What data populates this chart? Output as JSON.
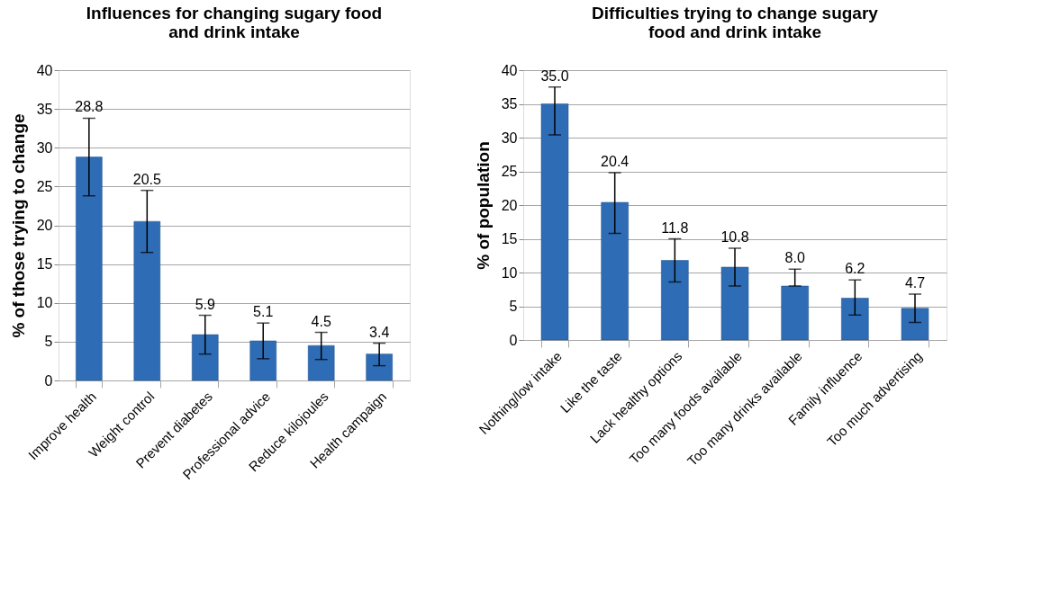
{
  "chart_data": [
    {
      "type": "bar",
      "title": "Influences for changing sugary food and drink intake",
      "ylabel": "% of those trying to change",
      "categories": [
        "Improve health",
        "Weight control",
        "Prevent diabetes",
        "Professional advice",
        "Reduce kilojoules",
        "Health campaign"
      ],
      "values": [
        28.8,
        20.5,
        5.9,
        5.1,
        4.5,
        3.4
      ],
      "color": "#2e6db5",
      "errors": [
        [
          23.8,
          33.8
        ],
        [
          16.5,
          24.5
        ],
        [
          3.4,
          8.4
        ],
        [
          2.8,
          7.4
        ],
        [
          2.7,
          6.2
        ],
        [
          1.9,
          4.8
        ]
      ],
      "ylim": [
        0,
        40
      ],
      "yticks": [
        0,
        5,
        10,
        15,
        20,
        25,
        30,
        35,
        40
      ],
      "grid": "y",
      "data_labels": true
    },
    {
      "type": "bar",
      "title": "Difficulties trying to change sugary food and drink intake",
      "ylabel": "% of population",
      "categories": [
        "Nothing/low intake",
        "Like the taste",
        "Lack healthy options",
        "Too many foods available",
        "Too many drinks available",
        "Family influence",
        "Too much advertising"
      ],
      "values": [
        35.0,
        20.4,
        11.8,
        10.8,
        8.0,
        6.2,
        4.7
      ],
      "color": "#2e6db5",
      "errors": [
        [
          30.4,
          37.5
        ],
        [
          15.8,
          24.8
        ],
        [
          8.6,
          15.0
        ],
        [
          8.0,
          13.6
        ],
        [
          8.0,
          10.5
        ],
        [
          3.7,
          8.9
        ],
        [
          2.6,
          6.8
        ]
      ],
      "value_labels": [
        "35.0",
        "20.4",
        "11.8",
        "10.8",
        "8.0",
        "6.2",
        "4.7"
      ],
      "ylim": [
        0,
        40
      ],
      "yticks": [
        0,
        5,
        10,
        15,
        20,
        25,
        30,
        35,
        40
      ],
      "grid": "y"
    }
  ]
}
